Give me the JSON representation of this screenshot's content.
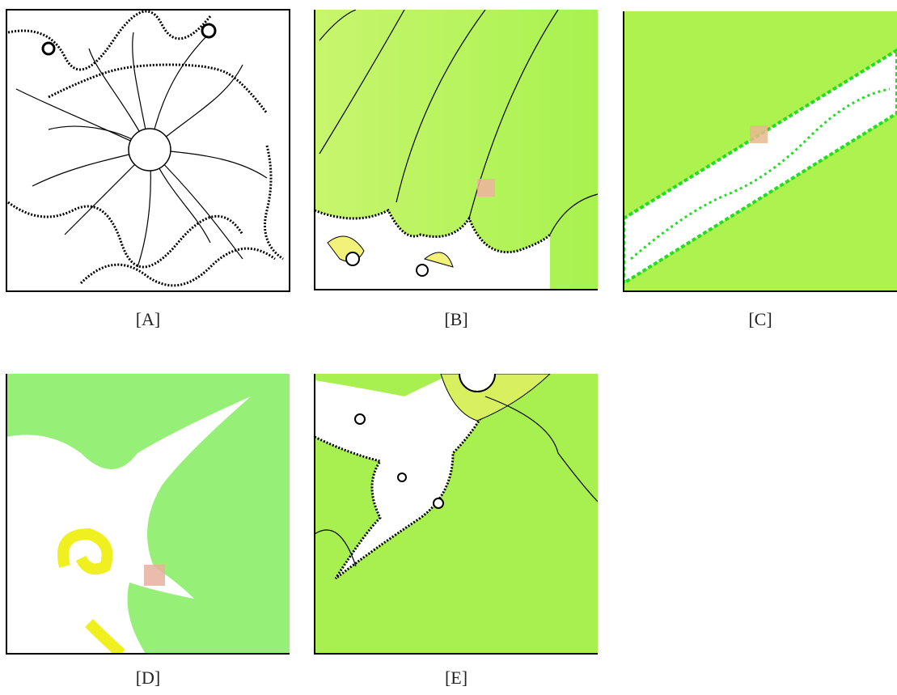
{
  "panels": [
    {
      "label": "[A]"
    },
    {
      "label": "[B]"
    },
    {
      "label": "[C]"
    },
    {
      "label": "[D]"
    },
    {
      "label": "[E]"
    }
  ]
}
